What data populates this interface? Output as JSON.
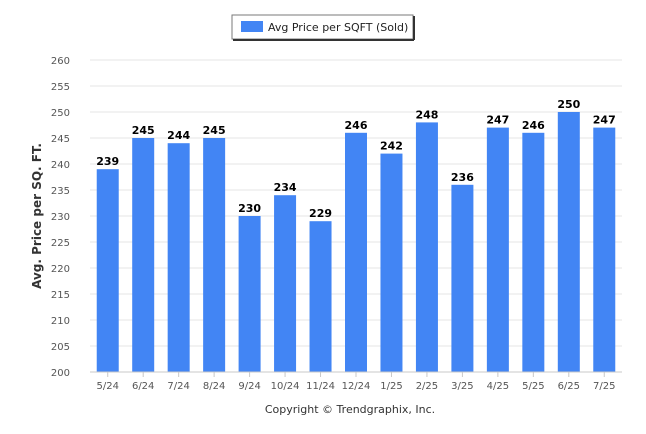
{
  "chart_data": {
    "type": "bar",
    "categories": [
      "5/24",
      "6/24",
      "7/24",
      "8/24",
      "9/24",
      "10/24",
      "11/24",
      "12/24",
      "1/25",
      "2/25",
      "3/25",
      "4/25",
      "5/25",
      "6/25",
      "7/25"
    ],
    "series": [
      {
        "name": "Avg Price per SQFT (Sold)",
        "values": [
          239,
          245,
          244,
          245,
          230,
          234,
          229,
          246,
          242,
          248,
          236,
          247,
          246,
          250,
          247
        ],
        "color": "#4285f4"
      }
    ],
    "ylabel": "Avg. Price per SQ. FT.",
    "xlabel": "",
    "ylim": [
      200,
      260
    ],
    "yticks": [
      200,
      205,
      210,
      215,
      220,
      225,
      230,
      235,
      240,
      245,
      250,
      255,
      260
    ],
    "grid": true,
    "legend_position": "top-center"
  },
  "footer": {
    "copyright": "Copyright © Trendgraphix, Inc."
  }
}
